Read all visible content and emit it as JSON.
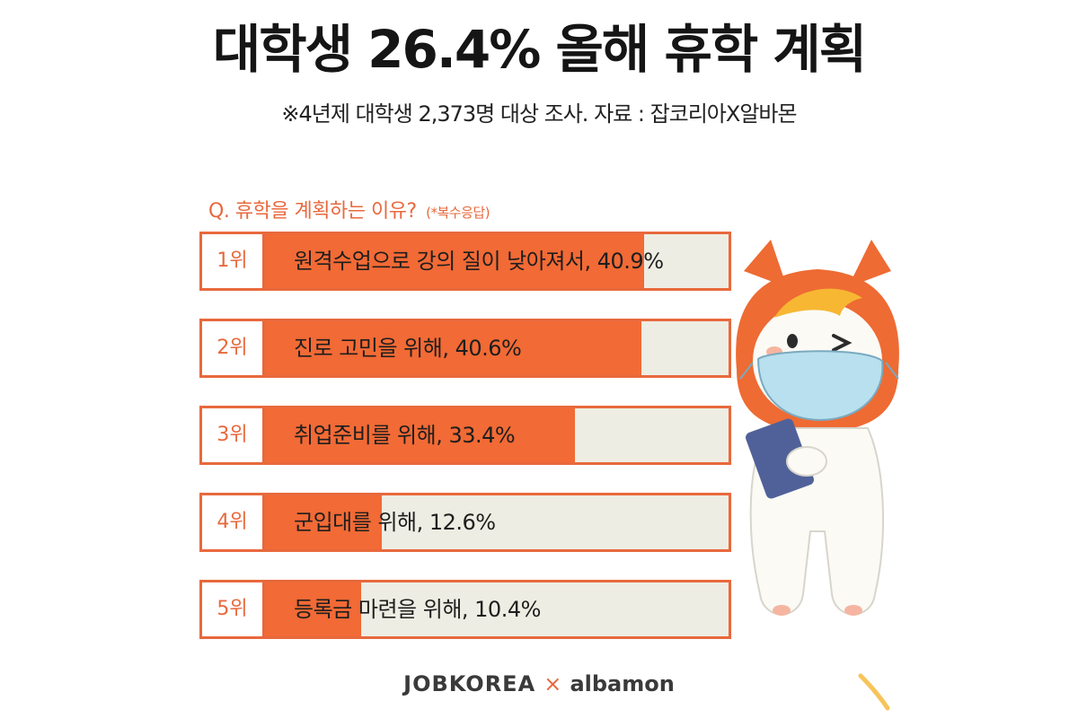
{
  "title": "대학생 26.4% 올해 휴학 계획",
  "subtitle": "※4년제 대학생 2,373명 대상 조사. 자료 : 잡코리아X알바몬",
  "colors": {
    "accent": "#f26a35",
    "border": "#e8693d",
    "track": "#eeede3",
    "text": "#1e1e1e"
  },
  "chart_data": {
    "type": "bar",
    "orientation": "horizontal",
    "title": "Q. 휴학을 계획하는 이유?",
    "note": "(*복수응답)",
    "categories": [
      "1위",
      "2위",
      "3위",
      "4위",
      "5위"
    ],
    "labels": [
      "원격수업으로 강의 질이 낮아져서, 40.9%",
      "진로 고민을 위해, 40.6%",
      "취업준비를 위해, 33.4%",
      "군입대를 위해, 12.6%",
      "등록금 마련을 위해, 10.4%"
    ],
    "values": [
      40.9,
      40.6,
      33.4,
      12.6,
      10.4
    ],
    "unit": "%",
    "xlim": [
      0,
      50
    ]
  },
  "brand": {
    "left": "JOBKOREA",
    "separator": "×",
    "right": "albamon"
  },
  "icons": {
    "mascot": "albamon-cat-mascot-icon",
    "corner": "corner-arc-icon"
  }
}
